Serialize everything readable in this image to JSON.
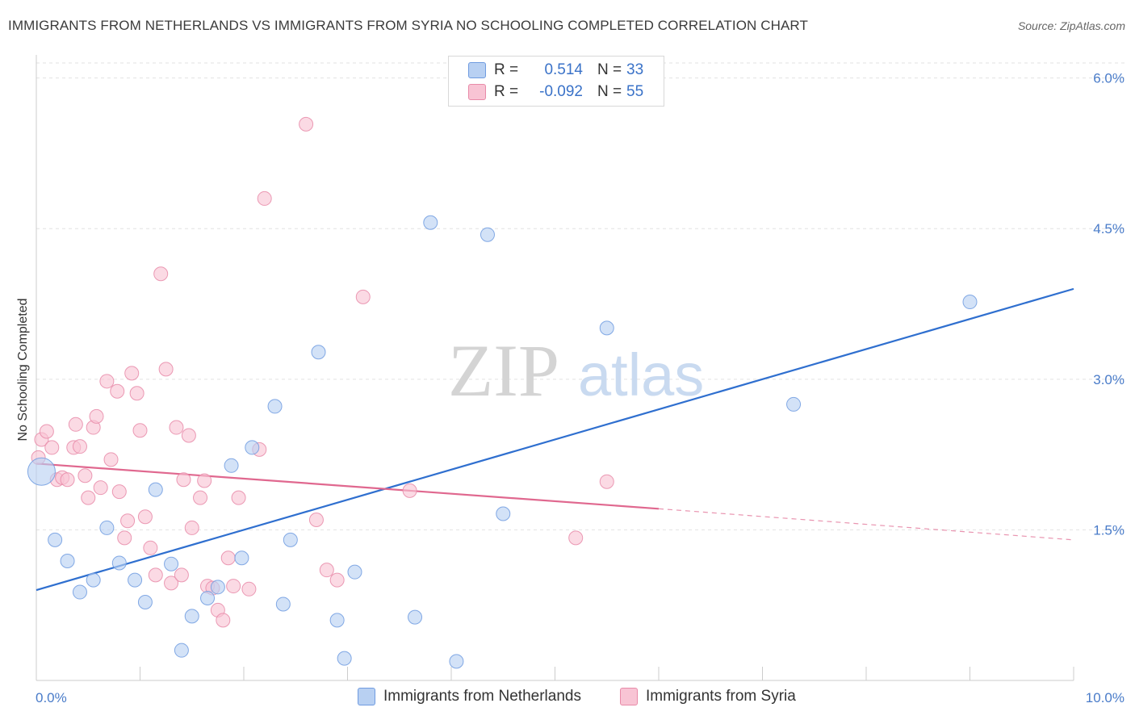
{
  "title": "IMMIGRANTS FROM NETHERLANDS VS IMMIGRANTS FROM SYRIA NO SCHOOLING COMPLETED CORRELATION CHART",
  "source": "Source: ZipAtlas.com",
  "watermark": {
    "zip": "ZIP",
    "atlas": "atlas"
  },
  "legend": {
    "rows": [
      {
        "r_label": "R =",
        "r_value": "0.514",
        "n_label": "N =",
        "n_value": "33"
      },
      {
        "r_label": "R =",
        "r_value": "-0.092",
        "n_label": "N =",
        "n_value": "55"
      }
    ]
  },
  "colors": {
    "netherlands_fill": "#b8d0f2",
    "netherlands_stroke": "#6f9be0",
    "netherlands_line": "#2f6fcf",
    "syria_fill": "#f8c4d4",
    "syria_stroke": "#e88aa8",
    "syria_line": "#e0688f",
    "grid": "#e2e2e2",
    "axis_text": "#4a7cc9"
  },
  "chart_data": {
    "type": "scatter",
    "title": "IMMIGRANTS FROM NETHERLANDS VS IMMIGRANTS FROM SYRIA NO SCHOOLING COMPLETED CORRELATION CHART",
    "xlabel": "",
    "ylabel": "No Schooling Completed",
    "xlim": [
      0,
      10
    ],
    "ylim": [
      0,
      6.15
    ],
    "x_tick_labels": [
      "0.0%",
      "10.0%"
    ],
    "y_ticks": [
      1.5,
      3.0,
      4.5,
      6.0
    ],
    "y_tick_labels": [
      "1.5%",
      "3.0%",
      "4.5%",
      "6.0%"
    ],
    "grid": true,
    "legend_position": "top-center",
    "series": [
      {
        "name": "Immigrants from Netherlands",
        "r": 0.514,
        "n": 33,
        "points": [
          [
            0.05,
            2.08
          ],
          [
            0.18,
            1.4
          ],
          [
            0.3,
            1.19
          ],
          [
            0.42,
            0.88
          ],
          [
            0.55,
            1.0
          ],
          [
            0.68,
            1.52
          ],
          [
            0.8,
            1.17
          ],
          [
            0.95,
            1.0
          ],
          [
            1.05,
            0.78
          ],
          [
            1.15,
            1.9
          ],
          [
            1.3,
            1.16
          ],
          [
            1.4,
            0.3
          ],
          [
            1.5,
            0.64
          ],
          [
            1.65,
            0.82
          ],
          [
            1.75,
            0.93
          ],
          [
            1.88,
            2.14
          ],
          [
            1.98,
            1.22
          ],
          [
            2.08,
            2.32
          ],
          [
            2.3,
            2.73
          ],
          [
            2.38,
            0.76
          ],
          [
            2.45,
            1.4
          ],
          [
            2.72,
            3.27
          ],
          [
            2.9,
            0.6
          ],
          [
            2.97,
            0.22
          ],
          [
            3.07,
            1.08
          ],
          [
            3.65,
            0.63
          ],
          [
            3.8,
            4.56
          ],
          [
            4.05,
            0.19
          ],
          [
            4.35,
            4.44
          ],
          [
            4.5,
            1.66
          ],
          [
            5.5,
            3.51
          ],
          [
            7.3,
            2.75
          ],
          [
            9.0,
            3.77
          ]
        ]
      },
      {
        "name": "Immigrants from Syria",
        "r": -0.092,
        "n": 55,
        "points": [
          [
            0.02,
            2.22
          ],
          [
            0.05,
            2.4
          ],
          [
            0.1,
            2.48
          ],
          [
            0.15,
            2.32
          ],
          [
            0.2,
            2.0
          ],
          [
            0.25,
            2.02
          ],
          [
            0.3,
            2.0
          ],
          [
            0.36,
            2.32
          ],
          [
            0.38,
            2.55
          ],
          [
            0.42,
            2.33
          ],
          [
            0.47,
            2.04
          ],
          [
            0.5,
            1.82
          ],
          [
            0.55,
            2.52
          ],
          [
            0.58,
            2.63
          ],
          [
            0.62,
            1.92
          ],
          [
            0.68,
            2.98
          ],
          [
            0.72,
            2.2
          ],
          [
            0.78,
            2.88
          ],
          [
            0.8,
            1.88
          ],
          [
            0.85,
            1.42
          ],
          [
            0.88,
            1.59
          ],
          [
            0.92,
            3.06
          ],
          [
            0.97,
            2.86
          ],
          [
            1.0,
            2.49
          ],
          [
            1.05,
            1.63
          ],
          [
            1.1,
            1.32
          ],
          [
            1.15,
            1.05
          ],
          [
            1.2,
            4.05
          ],
          [
            1.25,
            3.1
          ],
          [
            1.3,
            0.97
          ],
          [
            1.35,
            2.52
          ],
          [
            1.4,
            1.05
          ],
          [
            1.42,
            2.0
          ],
          [
            1.47,
            2.44
          ],
          [
            1.5,
            1.52
          ],
          [
            1.58,
            1.82
          ],
          [
            1.62,
            1.99
          ],
          [
            1.65,
            0.94
          ],
          [
            1.7,
            0.92
          ],
          [
            1.75,
            0.7
          ],
          [
            1.8,
            0.6
          ],
          [
            1.85,
            1.22
          ],
          [
            1.9,
            0.94
          ],
          [
            1.95,
            1.82
          ],
          [
            2.05,
            0.91
          ],
          [
            2.15,
            2.3
          ],
          [
            2.2,
            4.8
          ],
          [
            2.6,
            5.54
          ],
          [
            2.7,
            1.6
          ],
          [
            2.8,
            1.1
          ],
          [
            2.9,
            1.0
          ],
          [
            3.15,
            3.82
          ],
          [
            3.6,
            1.89
          ],
          [
            5.2,
            1.42
          ],
          [
            5.5,
            1.98
          ]
        ]
      }
    ],
    "trendlines": [
      {
        "series": "Immigrants from Netherlands",
        "x": [
          0,
          10
        ],
        "y": [
          0.9,
          3.9
        ],
        "style": "solid"
      },
      {
        "series": "Immigrants from Syria",
        "x": [
          0,
          6.0
        ],
        "y": [
          2.16,
          1.71
        ],
        "style": "solid",
        "extension": {
          "x": [
            6.0,
            10
          ],
          "y": [
            1.71,
            1.4
          ],
          "style": "dashed"
        }
      }
    ]
  }
}
